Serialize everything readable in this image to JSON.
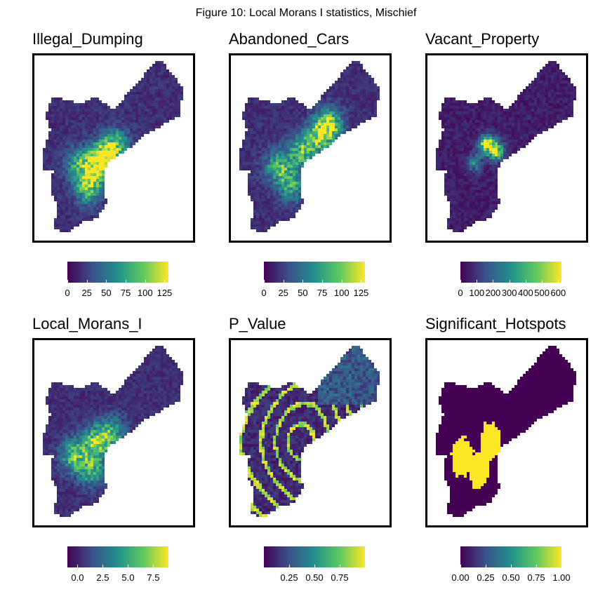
{
  "figure_title": "Figure 10: Local Morans I statistics, Mischief",
  "colorscale": [
    "#440154",
    "#3b528b",
    "#21908d",
    "#5dc963",
    "#fde725"
  ],
  "chart_data": [
    {
      "type": "heatmap",
      "title": "Illegal_Dumping",
      "legend": {
        "ticks": [
          "0",
          "25",
          "50",
          "75",
          "100",
          "125"
        ],
        "tick_values": [
          0,
          25,
          50,
          75,
          100,
          125
        ],
        "range": [
          0,
          130
        ]
      },
      "pattern": "clustered",
      "hotspots": [
        {
          "x": 0.45,
          "y": 0.55,
          "value": 0.95
        },
        {
          "x": 0.38,
          "y": 0.62,
          "value": 0.65
        },
        {
          "x": 0.34,
          "y": 0.72,
          "value": 0.55
        },
        {
          "x": 0.52,
          "y": 0.48,
          "value": 0.5
        },
        {
          "x": 0.28,
          "y": 0.58,
          "value": 0.45
        }
      ]
    },
    {
      "type": "heatmap",
      "title": "Abandoned_Cars",
      "legend": {
        "ticks": [
          "0",
          "25",
          "50",
          "75",
          "100",
          "125"
        ],
        "tick_values": [
          0,
          25,
          50,
          75,
          100,
          125
        ],
        "range": [
          0,
          130
        ]
      },
      "pattern": "clustered",
      "hotspots": [
        {
          "x": 0.62,
          "y": 0.38,
          "value": 0.85
        },
        {
          "x": 0.45,
          "y": 0.52,
          "value": 0.6
        },
        {
          "x": 0.3,
          "y": 0.6,
          "value": 0.55
        },
        {
          "x": 0.38,
          "y": 0.7,
          "value": 0.5
        },
        {
          "x": 0.55,
          "y": 0.45,
          "value": 0.5
        }
      ]
    },
    {
      "type": "heatmap",
      "title": "Vacant_Property",
      "legend": {
        "ticks": [
          "0",
          "100",
          "200",
          "300",
          "400",
          "500",
          "600"
        ],
        "tick_values": [
          0,
          100,
          200,
          300,
          400,
          500,
          600
        ],
        "range": [
          0,
          620
        ]
      },
      "pattern": "sparse",
      "hotspots": [
        {
          "x": 0.38,
          "y": 0.48,
          "value": 0.95
        },
        {
          "x": 0.44,
          "y": 0.52,
          "value": 0.7
        },
        {
          "x": 0.3,
          "y": 0.58,
          "value": 0.4
        }
      ]
    },
    {
      "type": "heatmap",
      "title": "Local_Morans_I",
      "legend": {
        "ticks": [
          "0.0",
          "2.5",
          "5.0",
          "7.5"
        ],
        "tick_values": [
          0,
          2.5,
          5,
          7.5
        ],
        "range": [
          -1,
          9
        ]
      },
      "pattern": "clustered",
      "hotspots": [
        {
          "x": 0.4,
          "y": 0.55,
          "value": 0.75
        },
        {
          "x": 0.25,
          "y": 0.62,
          "value": 0.6
        },
        {
          "x": 0.36,
          "y": 0.7,
          "value": 0.55
        },
        {
          "x": 0.5,
          "y": 0.5,
          "value": 0.45
        }
      ]
    },
    {
      "type": "heatmap",
      "title": "P_Value",
      "legend": {
        "ticks": [
          "0.25",
          "0.50",
          "0.75"
        ],
        "tick_values": [
          0.25,
          0.5,
          0.75
        ],
        "range": [
          0,
          1
        ]
      },
      "pattern": "rings",
      "hotspots": []
    },
    {
      "type": "heatmap",
      "title": "Significant_Hotspots",
      "legend": {
        "ticks": [
          "0.00",
          "0.25",
          "0.50",
          "0.75",
          "1.00"
        ],
        "tick_values": [
          0,
          0.25,
          0.5,
          0.75,
          1.0
        ],
        "range": [
          0,
          1
        ]
      },
      "pattern": "binary",
      "hotspots": [
        {
          "x": 0.4,
          "y": 0.55,
          "value": 1
        },
        {
          "x": 0.33,
          "y": 0.7,
          "value": 1
        },
        {
          "x": 0.22,
          "y": 0.63,
          "value": 1
        }
      ]
    }
  ]
}
